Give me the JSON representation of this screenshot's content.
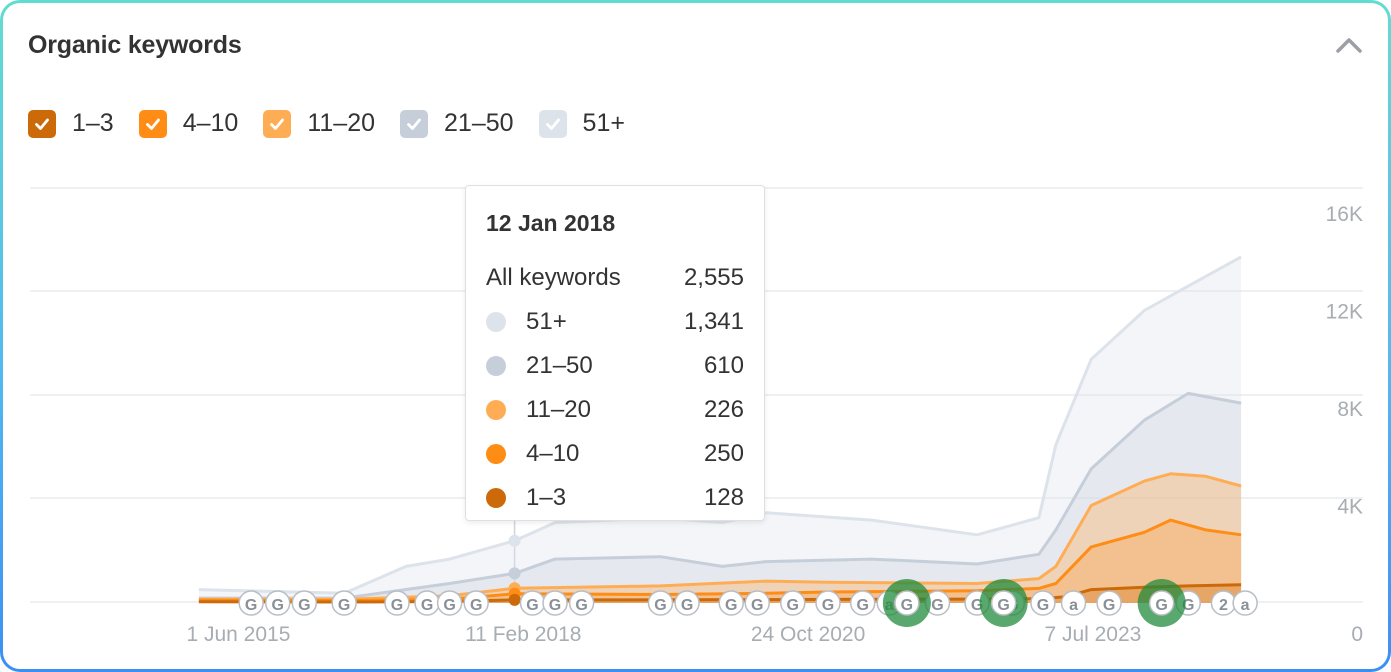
{
  "header": {
    "title": "Organic keywords",
    "collapse_icon": "chevron-up-icon"
  },
  "legend": [
    {
      "label": "1–3",
      "color": "#cc6a0a",
      "checked": true
    },
    {
      "label": "4–10",
      "color": "#ff8c14",
      "checked": true
    },
    {
      "label": "11–20",
      "color": "#ffad55",
      "checked": true
    },
    {
      "label": "21–50",
      "color": "#c6ced9",
      "checked": true
    },
    {
      "label": "51+",
      "color": "#dde3ea",
      "checked": true
    }
  ],
  "tooltip": {
    "date": "12 Jan 2018",
    "total_label": "All keywords",
    "total_value": "2,555",
    "rows": [
      {
        "label": "51+",
        "value": "1,341",
        "color": "#dde3ea"
      },
      {
        "label": "21–50",
        "value": "610",
        "color": "#c6ced9"
      },
      {
        "label": "11–20",
        "value": "226",
        "color": "#ffad55"
      },
      {
        "label": "4–10",
        "value": "250",
        "color": "#ff8c14"
      },
      {
        "label": "1–3",
        "value": "128",
        "color": "#cc6a0a"
      }
    ]
  },
  "chart_data": {
    "type": "area",
    "x_ticks": [
      "1 Jun 2015",
      "11 Feb 2018",
      "24 Oct 2020",
      "7 Jul 2023"
    ],
    "y_ticks": [
      "0",
      "4K",
      "8K",
      "12K",
      "16K"
    ],
    "ylim": [
      0,
      16000
    ],
    "xlim": [
      "2014-06-01",
      "2025-02-01"
    ],
    "grid": true,
    "hover_date": "2018-01-12",
    "series": [
      {
        "name": "1–3",
        "color": "#cc6a0a",
        "x": [
          "2015-01-15",
          "2016-06-01",
          "2017-06-01",
          "2018-01-12",
          "2019-06-01",
          "2020-06-01",
          "2021-06-01",
          "2022-06-01",
          "2023-01-01",
          "2023-04-01",
          "2023-07-01",
          "2024-01-01",
          "2024-06-01",
          "2024-12-01"
        ],
        "y": [
          50,
          40,
          60,
          128,
          130,
          140,
          150,
          160,
          180,
          250,
          550,
          650,
          700,
          750
        ]
      },
      {
        "name": "4–10",
        "color": "#ff8c14",
        "x": [
          "2015-01-15",
          "2016-06-01",
          "2017-06-01",
          "2018-01-12",
          "2019-06-01",
          "2020-06-01",
          "2021-01-01",
          "2022-06-01",
          "2023-01-01",
          "2023-03-01",
          "2023-07-01",
          "2024-01-01",
          "2024-04-01",
          "2024-08-01",
          "2024-12-01"
        ],
        "y": [
          120,
          100,
          150,
          378,
          350,
          400,
          450,
          500,
          600,
          800,
          2300,
          2900,
          3400,
          3000,
          2800
        ]
      },
      {
        "name": "11–20",
        "color": "#ffad55",
        "x": [
          "2015-01-15",
          "2016-06-01",
          "2017-06-01",
          "2018-01-12",
          "2019-06-01",
          "2020-06-01",
          "2021-01-01",
          "2022-06-01",
          "2023-01-01",
          "2023-03-01",
          "2023-07-01",
          "2024-01-01",
          "2024-04-01",
          "2024-08-01",
          "2024-12-01"
        ],
        "y": [
          150,
          150,
          300,
          604,
          700,
          900,
          850,
          800,
          1000,
          1500,
          4000,
          5000,
          5300,
          5200,
          4800
        ]
      },
      {
        "name": "21–50",
        "color": "#c6ced9",
        "x": [
          "2015-01-15",
          "2016-06-01",
          "2017-06-01",
          "2018-01-12",
          "2018-06-01",
          "2019-06-01",
          "2020-01-01",
          "2020-06-01",
          "2021-06-01",
          "2022-06-01",
          "2023-01-01",
          "2023-03-01",
          "2023-07-01",
          "2024-01-01",
          "2024-06-01",
          "2024-12-01"
        ],
        "y": [
          200,
          200,
          800,
          1214,
          1800,
          1900,
          1500,
          1700,
          1800,
          1600,
          2000,
          3000,
          5500,
          7500,
          8600,
          8200
        ]
      },
      {
        "name": "51+",
        "color": "#dde3ea",
        "x": [
          "2015-01-15",
          "2016-06-01",
          "2017-01-01",
          "2017-06-01",
          "2018-01-12",
          "2018-06-01",
          "2019-06-01",
          "2020-01-01",
          "2020-06-01",
          "2021-06-01",
          "2022-06-01",
          "2023-01-01",
          "2023-03-01",
          "2023-07-01",
          "2024-01-01",
          "2024-06-01",
          "2024-12-01"
        ],
        "y": [
          550,
          400,
          1500,
          1800,
          2555,
          3300,
          3500,
          3300,
          3700,
          3400,
          2800,
          3500,
          6500,
          10000,
          12000,
          13000,
          14200
        ]
      }
    ],
    "annotation_markers": [
      {
        "date": "2015-07-15",
        "label": "G"
      },
      {
        "date": "2015-10-15",
        "label": "G"
      },
      {
        "date": "2016-01-15",
        "label": "G"
      },
      {
        "date": "2016-06-01",
        "label": "G"
      },
      {
        "date": "2016-12-01",
        "label": "G"
      },
      {
        "date": "2017-03-15",
        "label": "G"
      },
      {
        "date": "2017-06-01",
        "label": "G"
      },
      {
        "date": "2017-09-01",
        "label": "G"
      },
      {
        "date": "2018-03-15",
        "label": "G"
      },
      {
        "date": "2018-06-01",
        "label": "G"
      },
      {
        "date": "2018-09-01",
        "label": "G"
      },
      {
        "date": "2019-06-01",
        "label": "G"
      },
      {
        "date": "2019-09-01",
        "label": "G"
      },
      {
        "date": "2020-02-01",
        "label": "G"
      },
      {
        "date": "2020-05-01",
        "label": "G"
      },
      {
        "date": "2020-09-01",
        "label": "G"
      },
      {
        "date": "2021-01-01",
        "label": "G"
      },
      {
        "date": "2021-05-01",
        "label": "G"
      },
      {
        "date": "2021-08-01",
        "label": "a"
      },
      {
        "date": "2022-01-15",
        "label": "G"
      },
      {
        "date": "2022-06-01",
        "label": "G"
      },
      {
        "date": "2022-10-01",
        "label": "G"
      },
      {
        "date": "2023-01-15",
        "label": "G"
      },
      {
        "date": "2023-05-01",
        "label": "a"
      },
      {
        "date": "2023-09-01",
        "label": "G"
      },
      {
        "date": "2024-06-01",
        "label": "G"
      },
      {
        "date": "2024-10-01",
        "label": "2"
      },
      {
        "date": "2024-12-15",
        "label": "a"
      }
    ],
    "highlight_markers": [
      {
        "date": "2021-10-01",
        "label": "G"
      },
      {
        "date": "2022-09-01",
        "label": "G"
      },
      {
        "date": "2024-03-01",
        "label": "G"
      }
    ]
  }
}
